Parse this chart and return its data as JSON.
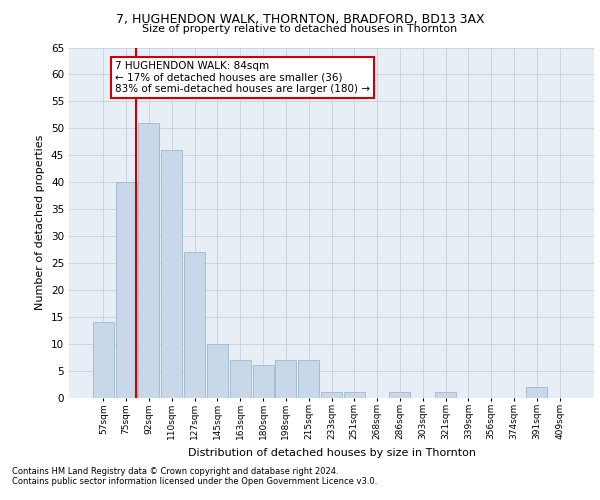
{
  "title1": "7, HUGHENDON WALK, THORNTON, BRADFORD, BD13 3AX",
  "title2": "Size of property relative to detached houses in Thornton",
  "xlabel": "Distribution of detached houses by size in Thornton",
  "ylabel": "Number of detached properties",
  "categories": [
    "57sqm",
    "75sqm",
    "92sqm",
    "110sqm",
    "127sqm",
    "145sqm",
    "163sqm",
    "180sqm",
    "198sqm",
    "215sqm",
    "233sqm",
    "251sqm",
    "268sqm",
    "286sqm",
    "303sqm",
    "321sqm",
    "339sqm",
    "356sqm",
    "374sqm",
    "391sqm",
    "409sqm"
  ],
  "values": [
    14,
    40,
    51,
    46,
    27,
    10,
    7,
    6,
    7,
    7,
    1,
    1,
    0,
    1,
    0,
    1,
    0,
    0,
    0,
    2,
    0
  ],
  "bar_color": "#c8d8e8",
  "bar_edgecolor": "#a0b8cc",
  "vline_color": "#cc0000",
  "vline_x": 1.45,
  "annotation_text": "7 HUGHENDON WALK: 84sqm\n← 17% of detached houses are smaller (36)\n83% of semi-detached houses are larger (180) →",
  "annotation_box_facecolor": "#ffffff",
  "annotation_box_edgecolor": "#cc0000",
  "ylim": [
    0,
    65
  ],
  "yticks": [
    0,
    5,
    10,
    15,
    20,
    25,
    30,
    35,
    40,
    45,
    50,
    55,
    60,
    65
  ],
  "grid_color": "#cdd5e0",
  "background_color": "#e8eef5",
  "footer1": "Contains HM Land Registry data © Crown copyright and database right 2024.",
  "footer2": "Contains public sector information licensed under the Open Government Licence v3.0."
}
